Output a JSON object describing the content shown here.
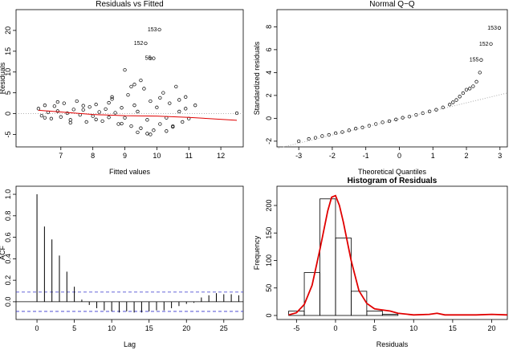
{
  "chart_data": [
    {
      "type": "scatter",
      "title": "Residuals vs Fitted",
      "xlabel": "Fitted values",
      "ylabel": "Residuals",
      "xlim": [
        5.6,
        12.7
      ],
      "ylim": [
        -8,
        25
      ],
      "xticks": [
        7,
        8,
        9,
        10,
        11,
        12
      ],
      "yticks": [
        -5,
        0,
        5,
        10,
        15,
        20
      ],
      "color": "#000000",
      "x": [
        6.3,
        6.4,
        6.5,
        6.6,
        6.7,
        6.8,
        6.9,
        7.0,
        7.1,
        7.2,
        7.3,
        7.4,
        7.5,
        7.6,
        7.7,
        7.8,
        7.9,
        8.0,
        8.1,
        8.2,
        8.3,
        8.4,
        8.5,
        8.6,
        8.7,
        8.8,
        8.9,
        9.0,
        9.1,
        9.2,
        9.3,
        9.4,
        9.5,
        9.6,
        9.7,
        9.8,
        9.9,
        10.0,
        10.1,
        10.2,
        10.3,
        10.4,
        10.5,
        10.6,
        10.7,
        10.8,
        10.9,
        11.0,
        11.2,
        12.5,
        6.5,
        6.9,
        7.3,
        7.7,
        8.1,
        8.5,
        8.9,
        9.3,
        9.7,
        10.1,
        10.5,
        10.9,
        9.0,
        9.2,
        9.5,
        9.8,
        10.3,
        10.7,
        8.6,
        9.4,
        9.65,
        9.8,
        9.9,
        10.08
      ],
      "values": [
        1.2,
        -0.5,
        2.0,
        0.3,
        -1.2,
        1.8,
        0.6,
        -0.8,
        2.5,
        0.1,
        -1.5,
        1.0,
        3.0,
        -0.3,
        0.9,
        -2.0,
        1.6,
        -0.6,
        2.2,
        0.4,
        -1.8,
        1.1,
        -0.9,
        3.5,
        0.2,
        -2.5,
        1.4,
        -1.0,
        4.5,
        -3.0,
        2.0,
        0.5,
        -3.5,
        6.0,
        -1.5,
        3.0,
        -4.0,
        1.5,
        -2.5,
        5.0,
        -1.0,
        2.5,
        -3.2,
        6.5,
        0.5,
        -2.0,
        4.0,
        -1.2,
        2.0,
        0.1,
        -1.0,
        2.8,
        -2.2,
        1.9,
        -1.4,
        2.6,
        -2.4,
        7.0,
        -4.8,
        3.8,
        -3.0,
        1.2,
        10.5,
        6.5,
        8.0,
        -5.0,
        -4.2,
        3.3,
        4.0,
        -4.5,
        16.9,
        13.3,
        13.3,
        20.2
      ],
      "lines": [
        {
          "color": "#e00000",
          "style": "solid",
          "x": [
            6.3,
            7,
            8,
            9,
            10,
            11,
            12.5
          ],
          "values": [
            0.8,
            0.4,
            -0.2,
            -0.5,
            -0.6,
            -0.9,
            -1.6
          ]
        }
      ],
      "hlines": [
        {
          "y": 0,
          "color": "#aaaaaa",
          "style": "dotted"
        }
      ],
      "annotations": [
        {
          "text": "153",
          "x": 10.08,
          "y": 20.2
        },
        {
          "text": "152",
          "x": 9.65,
          "y": 16.9
        },
        {
          "text": "55",
          "x": 9.9,
          "y": 13.3
        }
      ]
    },
    {
      "type": "scatter",
      "title": "Normal Q−Q",
      "xlabel": "Theoretical Quantiles",
      "ylabel": "Standardized residuals",
      "xlim": [
        -3.65,
        3.22
      ],
      "ylim": [
        -2.5,
        9.5
      ],
      "xticks": [
        -3,
        -2,
        -1,
        0,
        1,
        2,
        3
      ],
      "yticks": [
        -2,
        0,
        2,
        4,
        6,
        8
      ],
      "color": "#000000",
      "x": [
        -3.0,
        -2.7,
        -2.5,
        -2.3,
        -2.1,
        -1.9,
        -1.7,
        -1.5,
        -1.3,
        -1.1,
        -0.9,
        -0.7,
        -0.5,
        -0.3,
        -0.1,
        0.1,
        0.3,
        0.5,
        0.7,
        0.9,
        1.1,
        1.3,
        1.5,
        1.6,
        1.7,
        1.8,
        1.9,
        2.0,
        2.1,
        2.2,
        2.3,
        2.4,
        2.44,
        2.73,
        2.98
      ],
      "values": [
        -2.0,
        -1.8,
        -1.7,
        -1.55,
        -1.45,
        -1.3,
        -1.2,
        -1.05,
        -0.9,
        -0.8,
        -0.65,
        -0.5,
        -0.35,
        -0.25,
        -0.1,
        0.05,
        0.15,
        0.3,
        0.45,
        0.6,
        0.75,
        0.95,
        1.2,
        1.4,
        1.6,
        1.9,
        2.2,
        2.5,
        2.6,
        2.8,
        3.2,
        4.0,
        5.1,
        6.5,
        7.9
      ],
      "lines": [
        {
          "color": "#aaaaaa",
          "style": "dotted",
          "x": [
            -3.6,
            3.2
          ],
          "values": [
            -2.6,
            2.2
          ]
        }
      ],
      "annotations": [
        {
          "text": "153",
          "x": 2.98,
          "y": 7.9
        },
        {
          "text": "152",
          "x": 2.73,
          "y": 6.5
        },
        {
          "text": "155",
          "x": 2.44,
          "y": 5.1
        }
      ]
    },
    {
      "type": "stem",
      "xlabel": "Lag",
      "ylabel": "ACF",
      "xlim": [
        -2.8,
        27.6
      ],
      "ylim": [
        -0.165,
        1.075
      ],
      "xticks": [
        0,
        5,
        10,
        15,
        20,
        25
      ],
      "yticks": [
        {
          "value": 0,
          "label": "0.0"
        },
        0.2,
        0.4,
        0.6,
        0.8,
        {
          "value": 1,
          "label": "1.0"
        }
      ],
      "color": "#000000",
      "x": [
        0,
        1,
        2,
        3,
        4,
        5,
        6,
        7,
        8,
        9,
        10,
        11,
        12,
        13,
        14,
        15,
        16,
        17,
        18,
        19,
        20,
        21,
        22,
        23,
        24,
        25,
        26,
        27
      ],
      "values": [
        1.0,
        0.7,
        0.58,
        0.43,
        0.28,
        0.14,
        0.02,
        -0.03,
        -0.06,
        -0.08,
        -0.09,
        -0.1,
        -0.09,
        -0.1,
        -0.1,
        -0.09,
        -0.08,
        -0.08,
        -0.06,
        -0.04,
        -0.02,
        -0.01,
        0.04,
        0.06,
        0.08,
        0.07,
        0.07,
        0.06
      ],
      "hlines": [
        {
          "y": 0,
          "color": "#000000",
          "style": "solid"
        },
        {
          "y": 0.09,
          "color": "#3333cc",
          "style": "dashed"
        },
        {
          "y": -0.09,
          "color": "#3333cc",
          "style": "dashed"
        }
      ]
    },
    {
      "type": "histogram",
      "title": "Histogram of Residuals",
      "xlabel": "Residuals",
      "ylabel": "Frequency",
      "xlim": [
        -7.5,
        22
      ],
      "ylim": [
        -7.3,
        235
      ],
      "xticks": [
        -5,
        0,
        5,
        10,
        15,
        20
      ],
      "yticks": [
        0,
        50,
        100,
        150,
        200
      ],
      "color": "#000000",
      "bins": [
        -6,
        -4,
        -2,
        0,
        2,
        4,
        6,
        8,
        10,
        12,
        14,
        16,
        18,
        20,
        22
      ],
      "values": [
        8,
        78,
        212,
        141,
        44,
        8,
        2,
        0,
        0,
        0,
        0,
        0,
        0,
        0
      ],
      "lines": [
        {
          "color": "#e00000",
          "style": "solid",
          "x": [
            -6,
            -5,
            -4,
            -3,
            -2,
            -1,
            -0.5,
            0,
            0.5,
            1,
            2,
            3,
            4,
            5,
            6,
            7,
            8,
            10,
            12,
            13,
            14,
            16,
            18,
            20,
            22
          ],
          "values": [
            1,
            5,
            20,
            55,
            120,
            190,
            215,
            218,
            200,
            170,
            100,
            45,
            22,
            12,
            10,
            8,
            4,
            1,
            2,
            4,
            1,
            1,
            1,
            2,
            1
          ]
        }
      ]
    }
  ]
}
